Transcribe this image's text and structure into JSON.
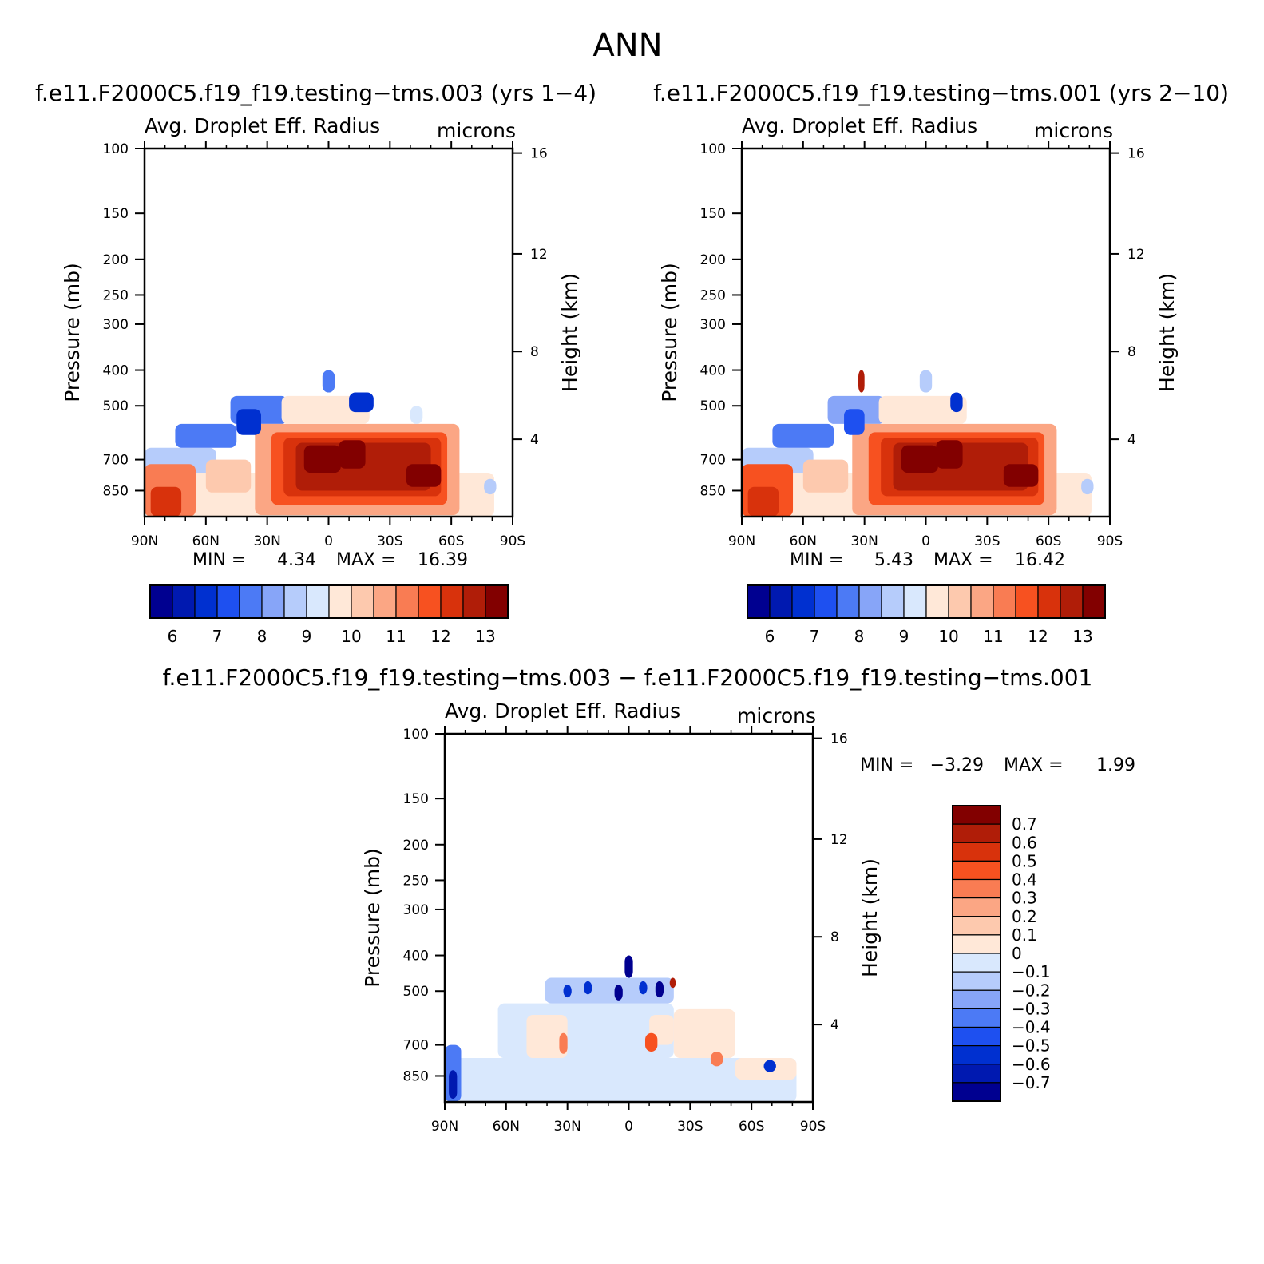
{
  "figure": {
    "title": "ANN",
    "diff_title": "f.e11.F2000C5.f19_f19.testing−tms.003 − f.e11.F2000C5.f19_f19.testing−tms.001"
  },
  "stat_labels": {
    "min": "MIN =",
    "max": "MAX ="
  },
  "chart_data": [
    {
      "type": "heatmap",
      "panel": "test",
      "title": "f.e11.F2000C5.f19_f19.testing−tms.003 (yrs 1−4)",
      "variable": "Avg. Droplet Eff. Radius",
      "units": "microns",
      "xlabel": "",
      "ylabel": "Pressure (mb)",
      "ylabel_right": "Height (km)",
      "x_ticks": [
        "90N",
        "60N",
        "30N",
        "0",
        "30S",
        "60S",
        "90S"
      ],
      "xlim": [
        90,
        -90
      ],
      "y_ticks": [
        100,
        150,
        200,
        250,
        300,
        400,
        500,
        700,
        850
      ],
      "ylim": [
        100,
        1000
      ],
      "y_ticks_right": [
        16,
        12,
        8,
        4
      ],
      "min": "4.34",
      "max": "16.39",
      "colorbar": {
        "orientation": "horizontal",
        "labels": [
          "6",
          "7",
          "8",
          "9",
          "10",
          "11",
          "12",
          "13"
        ],
        "colors": [
          "#000090",
          "#0019B0",
          "#0030D0",
          "#1E50F0",
          "#4C7AF5",
          "#87A5F8",
          "#B6CCFB",
          "#D9E8FD",
          "#FFE8D8",
          "#FDC9AE",
          "#FBA684",
          "#F97C53",
          "#F75120",
          "#D8320C",
          "#B01D08",
          "#820000"
        ]
      },
      "cells": [
        {
          "lat": [
            85,
            -81
          ],
          "p": [
            760,
            1000
          ],
          "v": 9.4
        },
        {
          "lat": [
            90,
            55
          ],
          "p": [
            650,
            760
          ],
          "v": 8.0
        },
        {
          "lat": [
            75,
            45
          ],
          "p": [
            560,
            650
          ],
          "v": 7.0
        },
        {
          "lat": [
            48,
            20
          ],
          "p": [
            470,
            560
          ],
          "v": 7.4
        },
        {
          "lat": [
            60,
            38
          ],
          "p": [
            700,
            860
          ],
          "v": 9.9
        },
        {
          "lat": [
            90,
            65
          ],
          "p": [
            720,
            1000
          ],
          "v": 10.9
        },
        {
          "lat": [
            87,
            72
          ],
          "p": [
            830,
            1000
          ],
          "v": 11.9
        },
        {
          "lat": [
            36,
            -64
          ],
          "p": [
            560,
            990
          ],
          "v": 10.3
        },
        {
          "lat": [
            28,
            -58
          ],
          "p": [
            590,
            930
          ],
          "v": 11.1
        },
        {
          "lat": [
            22,
            -55
          ],
          "p": [
            610,
            880
          ],
          "v": 11.8
        },
        {
          "lat": [
            16,
            -50
          ],
          "p": [
            630,
            850
          ],
          "v": 12.3
        },
        {
          "lat": [
            12,
            -6
          ],
          "p": [
            640,
            760
          ],
          "v": 13.3
        },
        {
          "lat": [
            -5,
            -18
          ],
          "p": [
            620,
            740
          ],
          "v": 13.1
        },
        {
          "lat": [
            -38,
            -55
          ],
          "p": [
            720,
            830
          ],
          "v": 12.7
        },
        {
          "lat": [
            23,
            -20
          ],
          "p": [
            470,
            560
          ],
          "v": 9.0
        },
        {
          "lat": [
            45,
            33
          ],
          "p": [
            510,
            600
          ],
          "v": 6.4
        },
        {
          "lat": [
            3,
            -3
          ],
          "p": [
            400,
            460
          ],
          "v": 7.4
        },
        {
          "lat": [
            -10,
            -22
          ],
          "p": [
            460,
            520
          ],
          "v": 6.3
        },
        {
          "lat": [
            -40,
            -46
          ],
          "p": [
            500,
            560
          ],
          "v": 8.5
        },
        {
          "lat": [
            -76,
            -82
          ],
          "p": [
            790,
            870
          ],
          "v": 8.4
        }
      ]
    },
    {
      "type": "heatmap",
      "panel": "control",
      "title": "f.e11.F2000C5.f19_f19.testing−tms.001 (yrs 2−10)",
      "variable": "Avg. Droplet Eff. Radius",
      "units": "microns",
      "xlabel": "",
      "ylabel": "Pressure (mb)",
      "ylabel_right": "Height (km)",
      "x_ticks": [
        "90N",
        "60N",
        "30N",
        "0",
        "30S",
        "60S",
        "90S"
      ],
      "xlim": [
        90,
        -90
      ],
      "y_ticks": [
        100,
        150,
        200,
        250,
        300,
        400,
        500,
        700,
        850
      ],
      "ylim": [
        100,
        1000
      ],
      "y_ticks_right": [
        16,
        12,
        8,
        4
      ],
      "min": "5.43",
      "max": "16.42",
      "colorbar": {
        "orientation": "horizontal",
        "labels": [
          "6",
          "7",
          "8",
          "9",
          "10",
          "11",
          "12",
          "13"
        ],
        "colors": [
          "#000090",
          "#0019B0",
          "#0030D0",
          "#1E50F0",
          "#4C7AF5",
          "#87A5F8",
          "#B6CCFB",
          "#D9E8FD",
          "#FFE8D8",
          "#FDC9AE",
          "#FBA684",
          "#F97C53",
          "#F75120",
          "#D8320C",
          "#B01D08",
          "#820000"
        ]
      },
      "cells": [
        {
          "lat": [
            85,
            -81
          ],
          "p": [
            760,
            1000
          ],
          "v": 9.4
        },
        {
          "lat": [
            90,
            55
          ],
          "p": [
            650,
            760
          ],
          "v": 8.1
        },
        {
          "lat": [
            75,
            45
          ],
          "p": [
            560,
            650
          ],
          "v": 7.1
        },
        {
          "lat": [
            48,
            20
          ],
          "p": [
            470,
            560
          ],
          "v": 7.5
        },
        {
          "lat": [
            60,
            38
          ],
          "p": [
            700,
            860
          ],
          "v": 9.9
        },
        {
          "lat": [
            90,
            65
          ],
          "p": [
            720,
            1000
          ],
          "v": 11.0
        },
        {
          "lat": [
            87,
            72
          ],
          "p": [
            830,
            1000
          ],
          "v": 11.9
        },
        {
          "lat": [
            36,
            -64
          ],
          "p": [
            560,
            990
          ],
          "v": 10.3
        },
        {
          "lat": [
            28,
            -58
          ],
          "p": [
            590,
            930
          ],
          "v": 11.1
        },
        {
          "lat": [
            22,
            -55
          ],
          "p": [
            610,
            880
          ],
          "v": 11.8
        },
        {
          "lat": [
            16,
            -50
          ],
          "p": [
            630,
            850
          ],
          "v": 12.3
        },
        {
          "lat": [
            12,
            -6
          ],
          "p": [
            640,
            760
          ],
          "v": 13.3
        },
        {
          "lat": [
            -5,
            -18
          ],
          "p": [
            620,
            740
          ],
          "v": 13.1
        },
        {
          "lat": [
            -38,
            -55
          ],
          "p": [
            720,
            830
          ],
          "v": 12.6
        },
        {
          "lat": [
            23,
            -20
          ],
          "p": [
            470,
            560
          ],
          "v": 9.0
        },
        {
          "lat": [
            40,
            30
          ],
          "p": [
            510,
            600
          ],
          "v": 6.6
        },
        {
          "lat": [
            33,
            30
          ],
          "p": [
            400,
            460
          ],
          "v": 12.2
        },
        {
          "lat": [
            3,
            -3
          ],
          "p": [
            400,
            460
          ],
          "v": 8.3
        },
        {
          "lat": [
            -12,
            -18
          ],
          "p": [
            460,
            520
          ],
          "v": 6.2
        },
        {
          "lat": [
            -76,
            -82
          ],
          "p": [
            790,
            870
          ],
          "v": 8.4
        }
      ]
    },
    {
      "type": "heatmap",
      "panel": "difference",
      "title": "",
      "variable": "Avg. Droplet Eff. Radius",
      "units": "microns",
      "xlabel": "",
      "ylabel": "Pressure (mb)",
      "ylabel_right": "Height (km)",
      "x_ticks": [
        "90N",
        "60N",
        "30N",
        "0",
        "30S",
        "60S",
        "90S"
      ],
      "xlim": [
        90,
        -90
      ],
      "y_ticks": [
        100,
        150,
        200,
        250,
        300,
        400,
        500,
        700,
        850
      ],
      "ylim": [
        100,
        1000
      ],
      "y_ticks_right": [
        16,
        12,
        8,
        4
      ],
      "min": "−3.29",
      "max": "1.99",
      "colorbar": {
        "orientation": "vertical",
        "labels": [
          "0.7",
          "0.6",
          "0.5",
          "0.4",
          "0.3",
          "0.2",
          "0.1",
          "0",
          "−0.1",
          "−0.2",
          "−0.3",
          "−0.4",
          "−0.5",
          "−0.6",
          "−0.7"
        ],
        "colors": [
          "#820000",
          "#B01D08",
          "#D8320C",
          "#F75120",
          "#F97C53",
          "#FBA684",
          "#FDC9AE",
          "#FFE8D8",
          "#D9E8FD",
          "#B6CCFB",
          "#87A5F8",
          "#4C7AF5",
          "#1E50F0",
          "#0030D0",
          "#0019B0",
          "#000090"
        ]
      },
      "cells": [
        {
          "lat": [
            90,
            -82
          ],
          "p": [
            760,
            1000
          ],
          "v": -0.05
        },
        {
          "lat": [
            64,
            -22
          ],
          "p": [
            540,
            760
          ],
          "v": -0.05
        },
        {
          "lat": [
            41,
            -22
          ],
          "p": [
            460,
            540
          ],
          "v": -0.15
        },
        {
          "lat": [
            -22,
            -52
          ],
          "p": [
            560,
            760
          ],
          "v": 0.05
        },
        {
          "lat": [
            -52,
            -82
          ],
          "p": [
            760,
            870
          ],
          "v": 0.05
        },
        {
          "lat": [
            90,
            82
          ],
          "p": [
            700,
            1000
          ],
          "v": -0.35
        },
        {
          "lat": [
            88,
            84
          ],
          "p": [
            820,
            980
          ],
          "v": -0.65
        },
        {
          "lat": [
            50,
            30
          ],
          "p": [
            580,
            760
          ],
          "v": 0.05
        },
        {
          "lat": [
            -10,
            -22
          ],
          "p": [
            580,
            700
          ],
          "v": 0.05
        },
        {
          "lat": [
            34,
            30
          ],
          "p": [
            650,
            740
          ],
          "v": 0.35
        },
        {
          "lat": [
            -8,
            -14
          ],
          "p": [
            650,
            730
          ],
          "v": 0.5
        },
        {
          "lat": [
            32,
            28
          ],
          "p": [
            480,
            520
          ],
          "v": -0.6
        },
        {
          "lat": [
            22,
            18
          ],
          "p": [
            470,
            510
          ],
          "v": -0.5
        },
        {
          "lat": [
            7,
            3
          ],
          "p": [
            480,
            530
          ],
          "v": -0.7
        },
        {
          "lat": [
            -5,
            -9
          ],
          "p": [
            470,
            510
          ],
          "v": -0.5
        },
        {
          "lat": [
            -13,
            -17
          ],
          "p": [
            470,
            520
          ],
          "v": -0.7
        },
        {
          "lat": [
            2,
            -2
          ],
          "p": [
            400,
            460
          ],
          "v": -0.7
        },
        {
          "lat": [
            -20,
            -23
          ],
          "p": [
            460,
            490
          ],
          "v": 0.7
        },
        {
          "lat": [
            -40,
            -46
          ],
          "p": [
            730,
            800
          ],
          "v": 0.4
        },
        {
          "lat": [
            -66,
            -72
          ],
          "p": [
            770,
            830
          ],
          "v": -0.5
        }
      ]
    }
  ]
}
